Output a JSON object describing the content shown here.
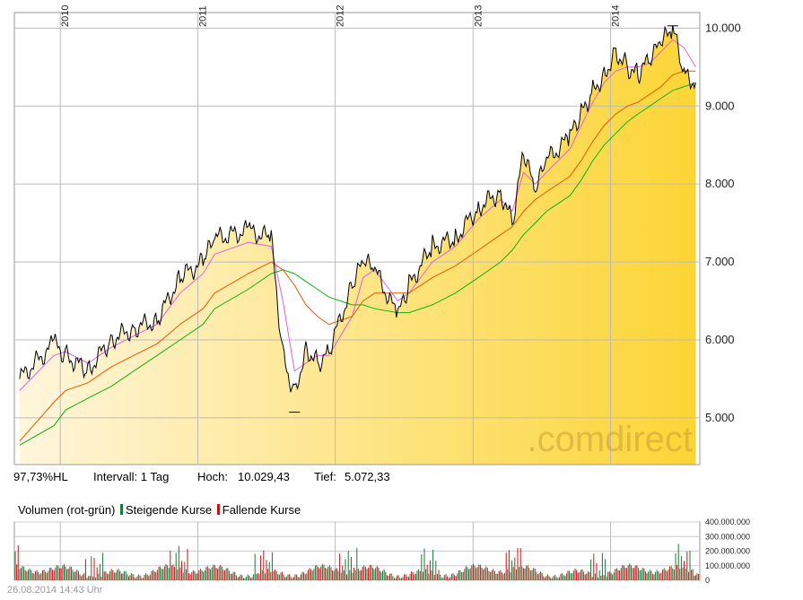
{
  "header": {
    "stat_hl": "97,73%HL",
    "interval_label": "Intervall: 1 Tag",
    "high_label": "Hoch:",
    "high_value": "10.029,43",
    "low_label": "Tief:",
    "low_value": "5.072,33"
  },
  "volume_legend": {
    "title": "Volumen (rot-grün)",
    "rising_label": "Steigende Kurse",
    "falling_label": "Fallende Kurse",
    "rising_color": "#1a7a3a",
    "falling_color": "#cc1111"
  },
  "watermark": ".comdirect",
  "timestamp": "26.08.2014 14:43 Uhr",
  "colors": {
    "price_line": "#000000",
    "ma_short": "#e060e0",
    "ma_mid": "#e05a00",
    "ma_long": "#10b010",
    "area_light": "#fff6dc",
    "area_dark": "#fcd535",
    "grid": "#bbbbbb"
  },
  "chart_data": [
    {
      "type": "line",
      "title": "",
      "x_ticks": [
        "2010",
        "2011",
        "2012",
        "2013",
        "2014"
      ],
      "y_ticks": [
        5000,
        6000,
        7000,
        8000,
        9000,
        10000
      ],
      "y_tick_labels": [
        "5.000",
        "6.000",
        "7.000",
        "8.000",
        "9.000",
        "10.000"
      ],
      "ylim": [
        4400,
        10200
      ],
      "x": [
        "2009-09",
        "2009-12",
        "2010-01",
        "2010-03",
        "2010-05",
        "2010-07",
        "2010-09",
        "2010-11",
        "2011-01",
        "2011-02",
        "2011-05",
        "2011-07",
        "2011-08",
        "2011-09",
        "2011-10",
        "2011-11",
        "2011-12",
        "2012-02",
        "2012-03",
        "2012-04",
        "2012-06",
        "2012-07",
        "2012-09",
        "2012-11",
        "2013-01",
        "2013-03",
        "2013-04",
        "2013-05",
        "2013-06",
        "2013-07",
        "2013-09",
        "2013-10",
        "2013-11",
        "2013-12",
        "2014-01",
        "2014-02",
        "2014-03",
        "2014-04",
        "2014-05",
        "2014-06",
        "2014-07",
        "2014-08"
      ],
      "series": [
        {
          "values": [
            5500,
            5950,
            5800,
            5600,
            6000,
            6150,
            6250,
            6800,
            7000,
            7300,
            7400,
            7300,
            5800,
            5300,
            5900,
            5700,
            5850,
            6700,
            7000,
            6900,
            6300,
            6700,
            7200,
            7300,
            7700,
            7900,
            7500,
            8400,
            7900,
            8300,
            8600,
            8900,
            9200,
            9400,
            9700,
            9500,
            9400,
            9600,
            9800,
            10000,
            9400,
            9300
          ]
        },
        {
          "values": [
            5350,
            5800,
            5850,
            5700,
            5900,
            6050,
            6200,
            6600,
            6850,
            7100,
            7250,
            7200,
            6500,
            5600,
            5700,
            5800,
            5800,
            6300,
            6800,
            6900,
            6500,
            6600,
            7000,
            7200,
            7550,
            7800,
            7650,
            8150,
            8000,
            8150,
            8450,
            8750,
            9050,
            9300,
            9450,
            9500,
            9500,
            9550,
            9700,
            9850,
            9750,
            9500
          ]
        },
        {
          "values": [
            4700,
            5200,
            5350,
            5450,
            5650,
            5800,
            5950,
            6200,
            6400,
            6600,
            6850,
            7000,
            6900,
            6700,
            6450,
            6300,
            6200,
            6300,
            6500,
            6600,
            6600,
            6600,
            6800,
            6950,
            7150,
            7350,
            7450,
            7650,
            7800,
            7900,
            8100,
            8300,
            8550,
            8750,
            8900,
            9000,
            9050,
            9150,
            9250,
            9400,
            9450,
            9450
          ]
        },
        {
          "values": [
            4650,
            4900,
            5100,
            5250,
            5400,
            5600,
            5800,
            6000,
            6200,
            6400,
            6650,
            6850,
            6900,
            6850,
            6750,
            6650,
            6550,
            6450,
            6450,
            6400,
            6350,
            6350,
            6450,
            6600,
            6800,
            7000,
            7150,
            7350,
            7500,
            7650,
            7850,
            8050,
            8300,
            8500,
            8650,
            8800,
            8900,
            9000,
            9100,
            9200,
            9250,
            9300
          ]
        }
      ]
    },
    {
      "type": "bar",
      "title": "",
      "y_ticks": [
        0,
        100000000,
        200000000,
        300000000,
        400000000
      ],
      "y_tick_labels": [
        "0",
        "100.000.000",
        "200.000.000",
        "300.000.000",
        "400.000.000"
      ],
      "ylim": [
        0,
        400000000
      ]
    }
  ]
}
